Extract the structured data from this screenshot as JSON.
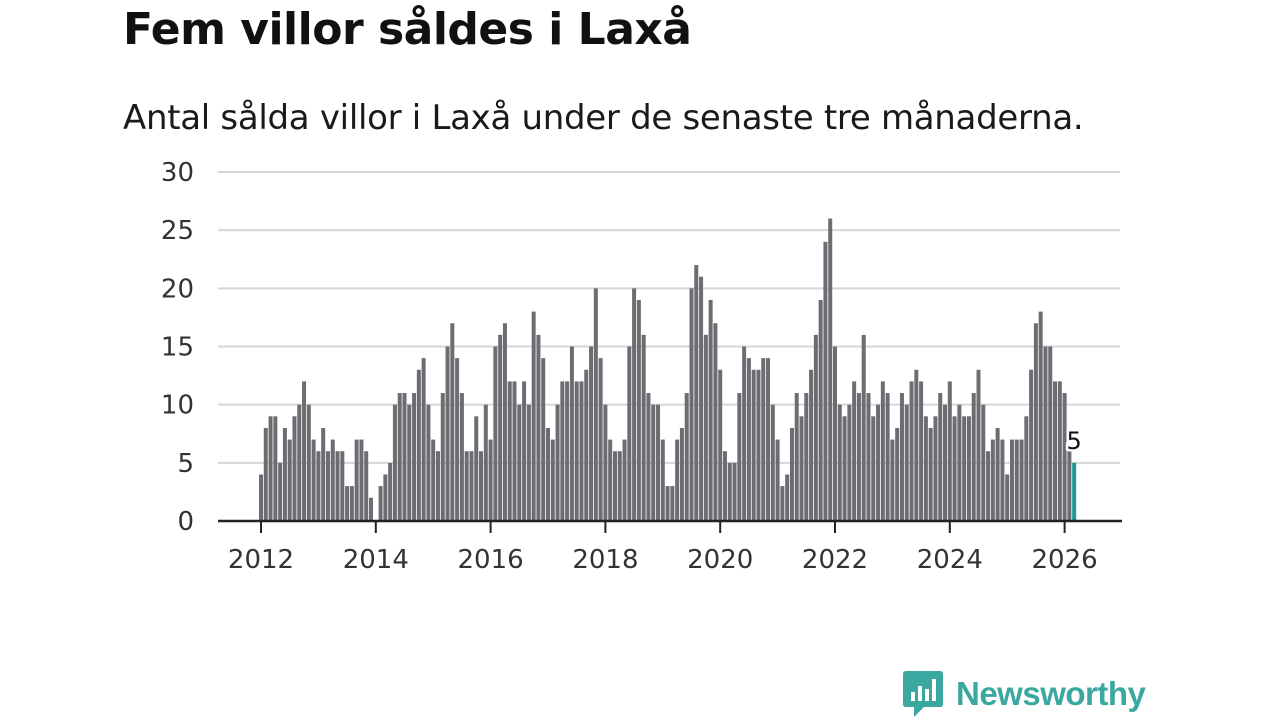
{
  "chart_data": {
    "type": "bar",
    "title": "Fem villor såldes i Laxå",
    "subtitle": "Antal sålda villor i Laxå under de senaste tre månaderna.",
    "xlabel": "",
    "ylabel": "",
    "ylim": [
      0,
      30
    ],
    "yticks": [
      0,
      5,
      10,
      15,
      20,
      25,
      30
    ],
    "xlim": [
      2012,
      2027.5
    ],
    "xticks": [
      2012,
      2014,
      2016,
      2018,
      2020,
      2022,
      2024,
      2026
    ],
    "xtick_labels": [
      "2012",
      "2014",
      "2016",
      "2018",
      "2020",
      "2022",
      "2024",
      "2026"
    ],
    "start_period": "2012-01",
    "interval_months": 1,
    "values": [
      4,
      8,
      9,
      9,
      5,
      8,
      7,
      9,
      10,
      12,
      10,
      7,
      6,
      8,
      6,
      7,
      6,
      6,
      3,
      3,
      7,
      7,
      6,
      2,
      0,
      3,
      4,
      5,
      10,
      11,
      11,
      10,
      11,
      13,
      14,
      10,
      7,
      6,
      11,
      15,
      17,
      14,
      11,
      6,
      6,
      9,
      6,
      10,
      7,
      15,
      16,
      17,
      12,
      12,
      10,
      12,
      10,
      18,
      16,
      14,
      8,
      7,
      10,
      12,
      12,
      15,
      12,
      12,
      13,
      15,
      20,
      14,
      10,
      7,
      6,
      6,
      7,
      15,
      20,
      19,
      16,
      11,
      10,
      10,
      7,
      3,
      3,
      7,
      8,
      11,
      20,
      22,
      21,
      16,
      19,
      17,
      13,
      6,
      5,
      5,
      11,
      15,
      14,
      13,
      13,
      14,
      14,
      10,
      7,
      3,
      4,
      8,
      11,
      9,
      11,
      13,
      16,
      19,
      24,
      26,
      15,
      10,
      9,
      10,
      12,
      11,
      16,
      11,
      9,
      10,
      12,
      11,
      7,
      8,
      11,
      10,
      12,
      13,
      12,
      9,
      8,
      9,
      11,
      10,
      12,
      9,
      10,
      9,
      9,
      11,
      13,
      10,
      6,
      7,
      8,
      7,
      4,
      7,
      7,
      7,
      9,
      13,
      17,
      18,
      15,
      15,
      12,
      12,
      11,
      6,
      5
    ],
    "highlight_index": 170,
    "highlight_label": "5",
    "bar_color": "#6d6c72",
    "highlight_color": "#1b9b93",
    "grid_color": "#d6d6d6",
    "axis_color": "#222222"
  },
  "brand": {
    "name": "Newsworthy",
    "icon": "newsworthy-logo-icon",
    "color": "#3aa8a0"
  }
}
